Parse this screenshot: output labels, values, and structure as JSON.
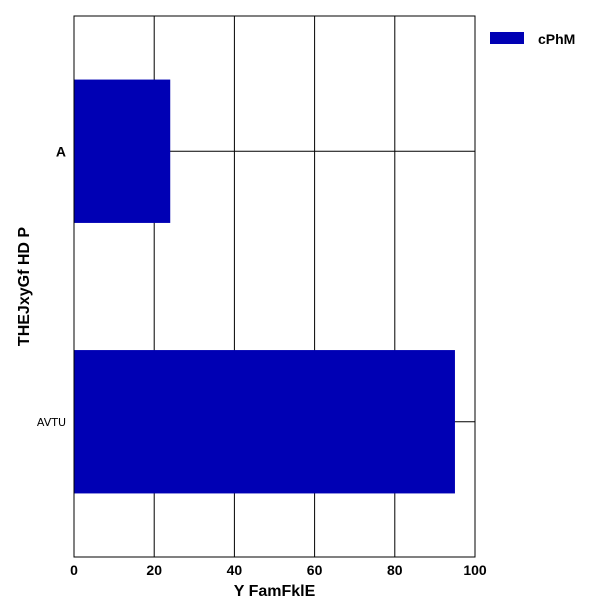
{
  "chart_data": {
    "type": "bar",
    "orientation": "horizontal",
    "categories": [
      "A",
      "AVTU"
    ],
    "series": [
      {
        "name": "cPhM",
        "values": [
          24,
          95
        ],
        "color": "#0000B4"
      }
    ],
    "xlabel": "Y FamFklE",
    "ylabel": "THEJxyGf HD P",
    "xlim": [
      0,
      100
    ],
    "xticks": [
      0,
      20,
      40,
      60,
      80,
      100
    ],
    "grid": true,
    "legend": "top-right"
  }
}
